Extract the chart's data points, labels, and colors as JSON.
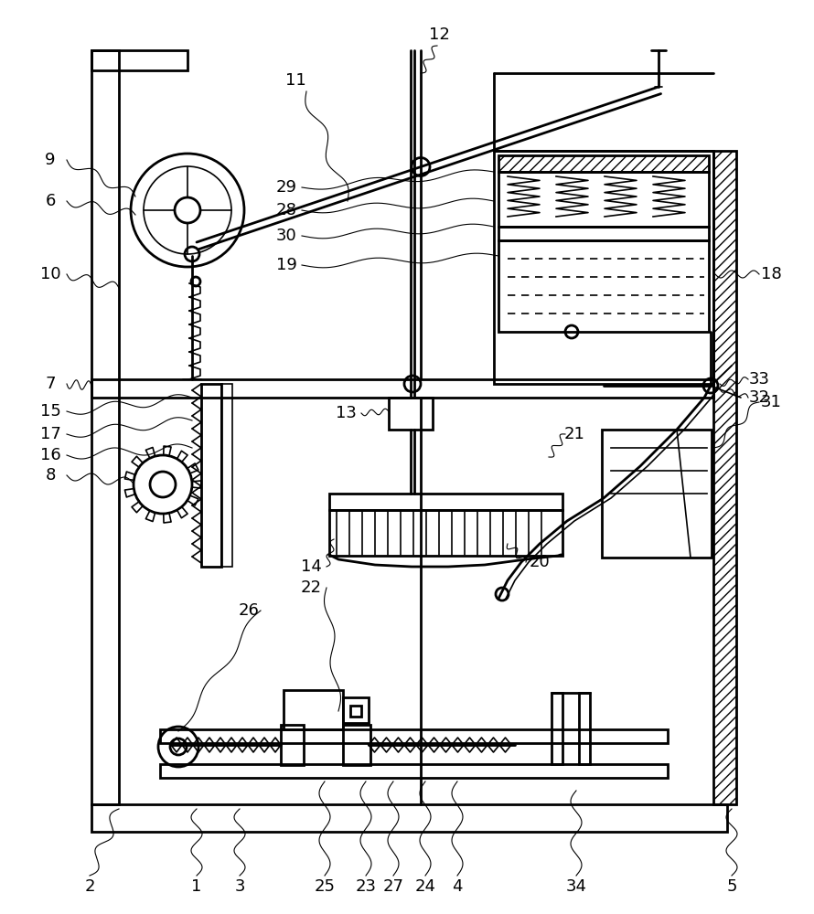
{
  "bg_color": "#ffffff",
  "line_color": "#000000",
  "lw": 1.2,
  "lw2": 2.0,
  "lw3": 2.5,
  "fig_width": 8.9,
  "fig_height": 10.0
}
